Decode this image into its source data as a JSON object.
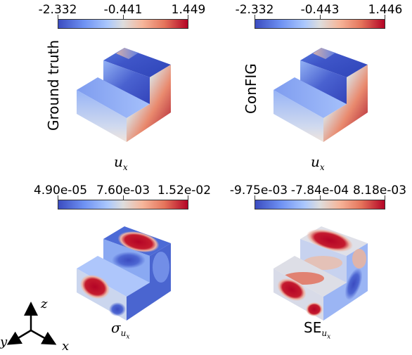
{
  "panels": [
    {
      "colorbar": {
        "min": "-2.332",
        "mid": "-0.441",
        "max": "1.449"
      },
      "row_label": "Ground truth",
      "var_symbol": "u",
      "var_subscript": "x",
      "var_upright": ""
    },
    {
      "colorbar": {
        "min": "-2.332",
        "mid": "-0.443",
        "max": "1.446"
      },
      "row_label": "ConFIG",
      "var_symbol": "u",
      "var_subscript": "x",
      "var_upright": ""
    },
    {
      "colorbar": {
        "min": "4.90e-05",
        "mid": "7.60e-03",
        "max": "1.52e-02"
      },
      "row_label": "",
      "var_symbol": "σ",
      "var_subscript": "u",
      "var_subsub": "x",
      "var_upright": ""
    },
    {
      "colorbar": {
        "min": "-9.75e-03",
        "mid": "-7.84e-04",
        "max": "8.18e-03"
      },
      "row_label": "",
      "var_symbol": "",
      "var_subscript": "u",
      "var_subsub": "x",
      "var_upright": "SE"
    }
  ],
  "axes": {
    "z": "z",
    "y": "y",
    "x": "x"
  },
  "colors": {
    "cold": "#3b4cc0",
    "neutral": "#dddddd",
    "hot": "#b40426"
  }
}
